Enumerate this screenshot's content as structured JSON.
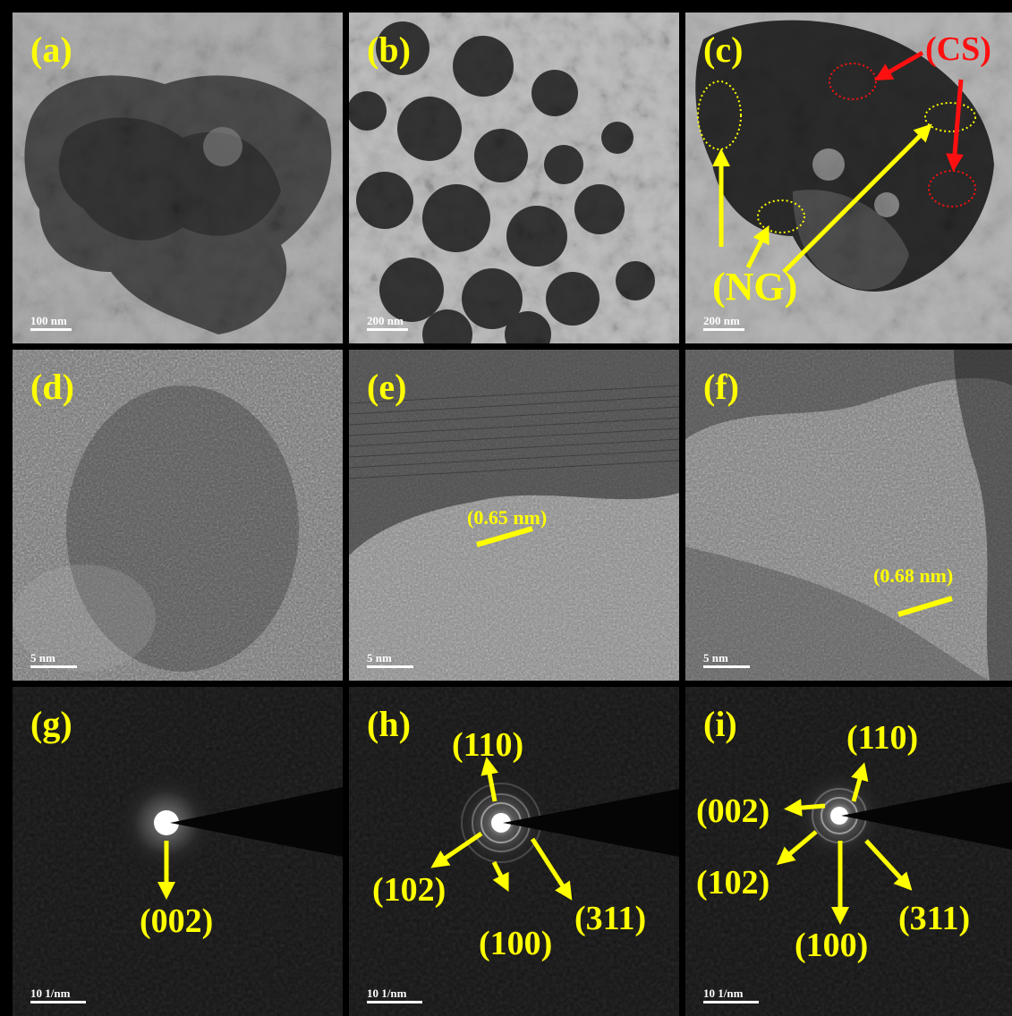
{
  "panels": {
    "a": {
      "label": "(a)",
      "scale": "100 nm"
    },
    "b": {
      "label": "(b)",
      "scale": "200 nm"
    },
    "c": {
      "label": "(c)",
      "scale": "200 nm",
      "annot_cs": "(CS)",
      "annot_ng": "(NG)"
    },
    "d": {
      "label": "(d)",
      "scale": "5 nm"
    },
    "e": {
      "label": "(e)",
      "scale": "5 nm",
      "spacing": "(0.65 nm)"
    },
    "f": {
      "label": "(f)",
      "scale": "5 nm",
      "spacing": "(0.68 nm)"
    },
    "g": {
      "label": "(g)",
      "scale": "10 1/nm",
      "planes": [
        "(002)"
      ]
    },
    "h": {
      "label": "(h)",
      "scale": "10 1/nm",
      "planes": [
        "(110)",
        "(102)",
        "(100)",
        "(311)"
      ]
    },
    "i": {
      "label": "(i)",
      "scale": "10 1/nm",
      "planes": [
        "(110)",
        "(002)",
        "(102)",
        "(100)",
        "(311)"
      ]
    }
  },
  "colors": {
    "annotation": "#ffff00",
    "cs_annotation": "#ff1010",
    "scalebar": "#ffffff"
  }
}
